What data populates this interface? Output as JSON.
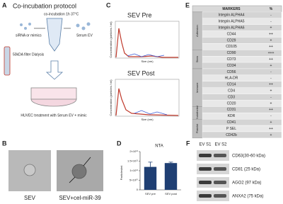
{
  "panel_a": {
    "letter": "A",
    "title": "Co-incubation protocol",
    "step1": "co-incubation 1h 37°C",
    "sirna": "siRNA or mimics",
    "serum_ev": "Serum EV",
    "filter": "50kDA filter Dialysis",
    "treatment": "HUVEC treatment with Serum EV + mimic"
  },
  "panel_b": {
    "letter": "B",
    "labels": [
      "SEV",
      "SEV+cel-miR-39"
    ]
  },
  "panel_c": {
    "letter": "C",
    "plots": [
      {
        "title": "SEV Pre"
      },
      {
        "title": "SEV Post"
      }
    ],
    "y_label": "Concentration (particles / ml)",
    "x_label": "Size (nm)"
  },
  "panel_d": {
    "letter": "D",
    "chart": {
      "type": "bar",
      "title": "NTA",
      "y_label": "Particles/ml",
      "categories": [
        "SEV pre",
        "SEV post"
      ],
      "values": [
        120000000000,
        140000000000
      ],
      "errors": [
        25000000000,
        5000000000
      ],
      "color": "#1f3f73",
      "ylim": [
        0,
        200000000000
      ],
      "yticks": [
        {
          "value": 0,
          "label": "0"
        },
        {
          "value": 50000000000,
          "label": "5×10¹⁰"
        },
        {
          "value": 100000000000,
          "label": "1×10¹¹"
        },
        {
          "value": 150000000000,
          "label": "1.5×10¹¹"
        },
        {
          "value": 200000000000,
          "label": "2×10¹¹"
        }
      ]
    }
  },
  "panel_e": {
    "letter": "E",
    "header": [
      "MARKERS",
      "%"
    ],
    "groups": [
      {
        "name": "Adhesion",
        "rows": [
          [
            "Integrin ALPHA4",
            "-"
          ],
          [
            "Integrin ALPHA5",
            "-"
          ],
          [
            "Integrin ALPHA6",
            "+"
          ],
          [
            "CD44",
            "++"
          ],
          [
            "CD29",
            "+"
          ],
          [
            "CD105",
            "++"
          ]
        ]
      },
      {
        "name": "Stem",
        "rows": [
          [
            "CD90",
            "+++"
          ],
          [
            "CD73",
            "++"
          ],
          [
            "CD34",
            "+"
          ]
        ]
      },
      {
        "name": "Immune",
        "rows": [
          [
            "CD56",
            "-"
          ],
          [
            "HLA-DR",
            "-"
          ],
          [
            "CD14",
            "++"
          ],
          [
            "CD4",
            "+"
          ],
          [
            "CD3",
            "-"
          ],
          [
            "CD20",
            "+"
          ]
        ]
      },
      {
        "name": "Endothelial",
        "rows": [
          [
            "CD31",
            "++"
          ],
          [
            "KDR",
            "-"
          ]
        ]
      },
      {
        "name": "Platelet",
        "rows": [
          [
            "CD41",
            "+"
          ],
          [
            "P SEL",
            "++"
          ],
          [
            "CD42b",
            "+"
          ]
        ]
      }
    ]
  },
  "panel_f": {
    "letter": "F",
    "lanes": [
      "EV S1",
      "EV S2"
    ],
    "bands": [
      "CD63(30-60 kDa)",
      "CD81 (25 kDa)",
      "AGO2 (97 kDa)",
      "ANXA2 (75 kDa)"
    ]
  }
}
